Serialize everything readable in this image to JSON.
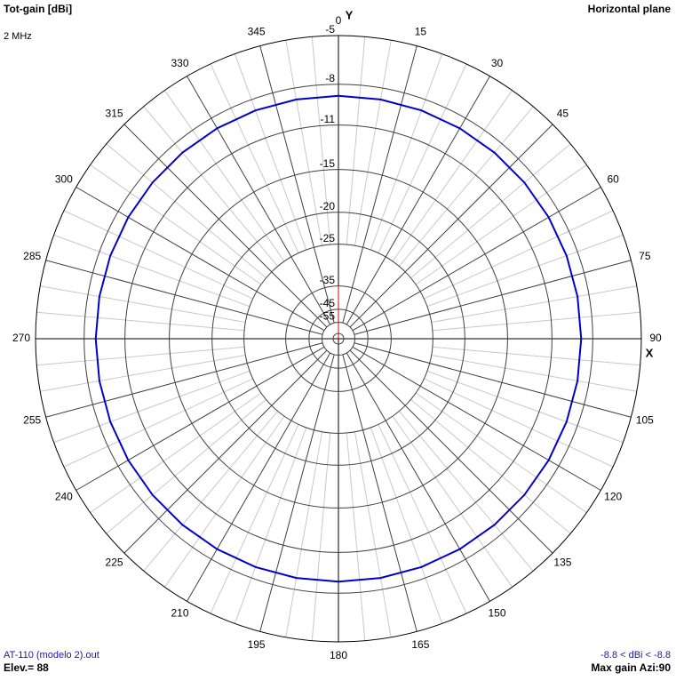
{
  "chart_data": {
    "type": "polar",
    "title": "Tot-gain [dBi]",
    "subtitle": "2 MHz",
    "plane": "Horizontal plane",
    "y_axis_label": "Y",
    "x_axis_label": "X",
    "file": "AT-110 (modelo 2).out",
    "elevation": "Elev.= 88",
    "range_note": "-8.8 < dBi < -8.8",
    "max_gain_note": "Max gain Azi:90",
    "rticks": [
      -5,
      -8,
      -11,
      -15,
      -20,
      -25,
      -35,
      -45,
      -55
    ],
    "angle_ticks": [
      0,
      15,
      30,
      45,
      60,
      75,
      90,
      105,
      120,
      135,
      150,
      165,
      180,
      195,
      210,
      225,
      240,
      255,
      270,
      285,
      300,
      315,
      330,
      345
    ],
    "series": [
      {
        "color": "#0000c8",
        "x": [
          0,
          10,
          20,
          30,
          40,
          50,
          60,
          70,
          80,
          90,
          100,
          110,
          120,
          130,
          140,
          150,
          160,
          170,
          180,
          190,
          200,
          210,
          220,
          230,
          240,
          250,
          260,
          270,
          280,
          290,
          300,
          310,
          320,
          330,
          340,
          350,
          360
        ],
        "values": [
          -8.8,
          -8.8,
          -8.8,
          -8.8,
          -8.8,
          -8.8,
          -8.8,
          -8.8,
          -8.8,
          -8.8,
          -8.8,
          -8.8,
          -8.8,
          -8.8,
          -8.8,
          -8.8,
          -8.8,
          -8.8,
          -8.8,
          -8.8,
          -8.8,
          -8.8,
          -8.8,
          -8.8,
          -8.8,
          -8.8,
          -8.8,
          -8.8,
          -8.8,
          -8.8,
          -8.8,
          -8.8,
          -8.8,
          -8.8,
          -8.8,
          -8.8,
          -8.8
        ]
      }
    ]
  }
}
